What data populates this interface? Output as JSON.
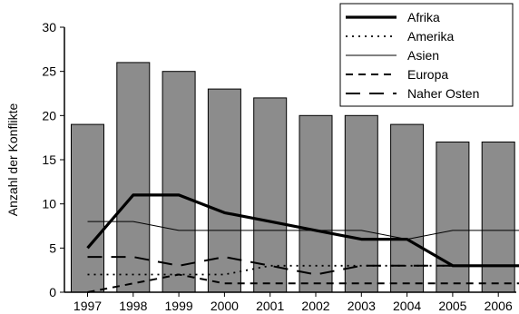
{
  "chart_data": {
    "type": "bar",
    "title": "",
    "xlabel": "",
    "ylabel": "Anzahl der Konflikte",
    "ylim": [
      0,
      30
    ],
    "yticks": [
      "0",
      "5",
      "10",
      "15",
      "20",
      "25",
      "30"
    ],
    "categories": [
      "1997",
      "1998",
      "1999",
      "2000",
      "2001",
      "2002",
      "2003",
      "2004",
      "2005",
      "2006"
    ],
    "bar_values": [
      19,
      26,
      25,
      23,
      22,
      20,
      20,
      19,
      17,
      17
    ],
    "bar_color": "#8c8c8c",
    "grid": false,
    "legend_position": "top-right",
    "series": [
      {
        "name": "Afrika",
        "style": "thick-solid",
        "points": [
          [
            1997,
            5
          ],
          [
            1998,
            11
          ],
          [
            1999,
            11
          ],
          [
            2000,
            9
          ],
          [
            2001,
            8
          ],
          [
            2002,
            7
          ],
          [
            2003,
            6
          ],
          [
            2004,
            6
          ],
          [
            2005,
            3
          ],
          [
            2006,
            3
          ],
          [
            2006.7,
            3
          ]
        ]
      },
      {
        "name": "Amerika",
        "style": "dotted",
        "points": [
          [
            1997,
            2
          ],
          [
            1998,
            2
          ],
          [
            1999,
            2
          ],
          [
            2000,
            2
          ],
          [
            2001,
            3
          ],
          [
            2002,
            3
          ],
          [
            2003,
            3
          ],
          [
            2004,
            3
          ],
          [
            2005,
            3
          ],
          [
            2006,
            3
          ],
          [
            2006.7,
            3
          ]
        ]
      },
      {
        "name": "Asien",
        "style": "thin-solid",
        "points": [
          [
            1997,
            8
          ],
          [
            1998,
            8
          ],
          [
            1999,
            7
          ],
          [
            2000,
            7
          ],
          [
            2001,
            7
          ],
          [
            2002,
            7
          ],
          [
            2003,
            7
          ],
          [
            2004,
            6
          ],
          [
            2005,
            7
          ],
          [
            2006,
            7
          ],
          [
            2006.7,
            7
          ]
        ]
      },
      {
        "name": "Europa",
        "style": "short-dash",
        "points": [
          [
            1997,
            0
          ],
          [
            1998,
            1
          ],
          [
            1999,
            2
          ],
          [
            2000,
            1
          ],
          [
            2001,
            1
          ],
          [
            2002,
            1
          ],
          [
            2003,
            1
          ],
          [
            2004,
            1
          ],
          [
            2005,
            1
          ],
          [
            2006,
            1
          ],
          [
            2006.7,
            1
          ]
        ]
      },
      {
        "name": "Naher Osten",
        "style": "long-dash",
        "points": [
          [
            1997,
            4
          ],
          [
            1998,
            4
          ],
          [
            1999,
            3
          ],
          [
            2000,
            4
          ],
          [
            2001,
            3
          ],
          [
            2002,
            2
          ],
          [
            2003,
            3
          ],
          [
            2004,
            3
          ],
          [
            2005,
            3
          ],
          [
            2006,
            3
          ],
          [
            2006.7,
            3
          ]
        ]
      }
    ]
  }
}
